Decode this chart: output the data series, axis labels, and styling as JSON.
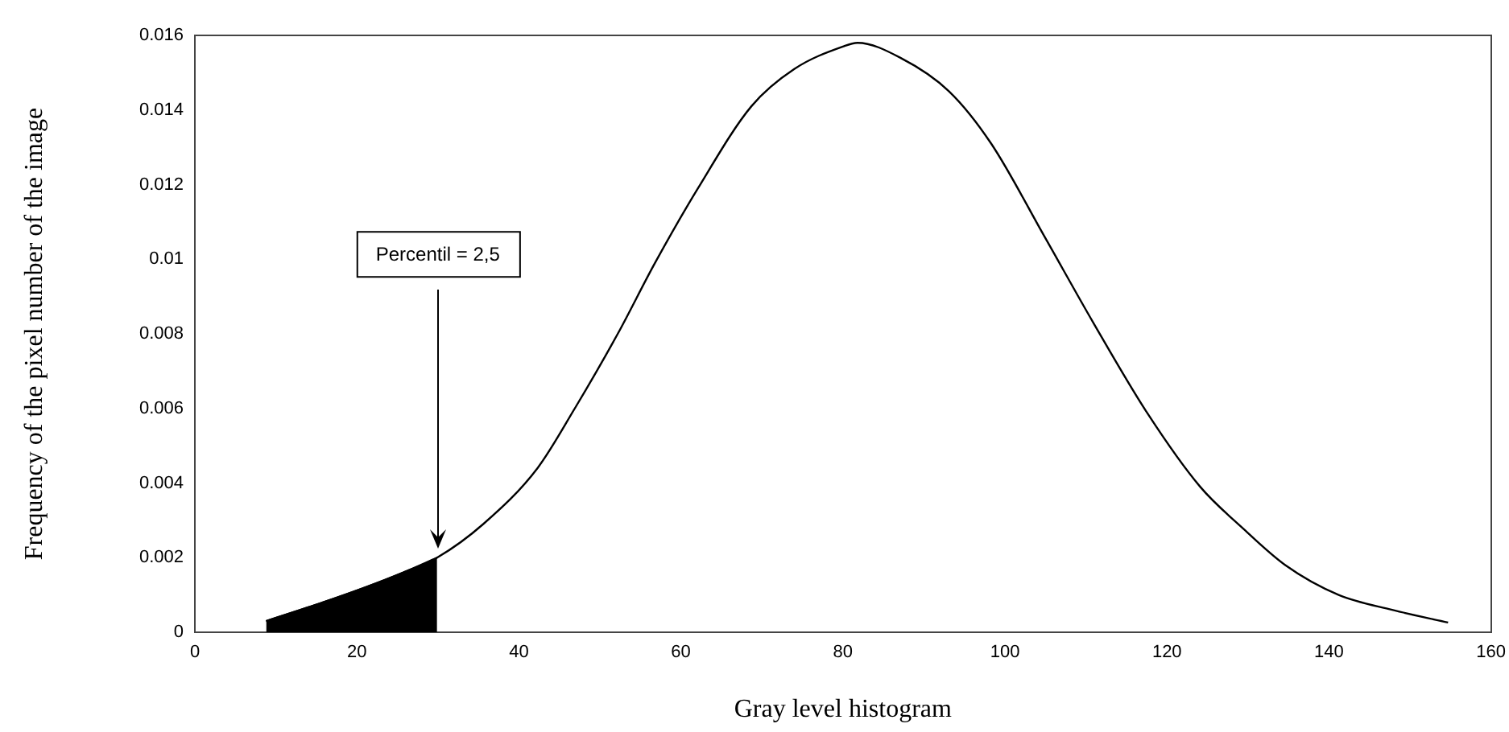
{
  "chart_data": {
    "type": "line",
    "xlabel": "Gray level histogram",
    "ylabel": "Frequency of the pixel number of the image",
    "xlim": [
      0,
      160
    ],
    "xticks": [
      0,
      20,
      40,
      60,
      80,
      100,
      120,
      140,
      160
    ],
    "ylim": [
      0,
      0.016
    ],
    "yticks": [
      0,
      0.002,
      0.004,
      0.006,
      0.008,
      0.01,
      0.012,
      0.014,
      0.016
    ],
    "grid": false,
    "legend": false,
    "marker": "none",
    "line_style": "solid",
    "annotations": [
      {
        "text": "Percentil = 2,5",
        "x": 30,
        "y": 0.002
      }
    ],
    "series": [
      {
        "type": "area",
        "color": "#000000",
        "x": [
          8.8,
          15.8,
          21,
          25.7,
          29.9
        ],
        "values": [
          0.0003,
          0.0008,
          0.0012,
          0.0016,
          0.002
        ]
      },
      {
        "type": "line",
        "color": "#000000",
        "x": [
          8.8,
          15.8,
          21,
          25.7,
          29.9,
          35.6,
          42.3,
          46.9,
          52.2,
          56.8,
          62.1,
          68.7,
          74,
          80,
          81.8,
          87.1,
          93.1,
          98.3,
          104.9,
          110.9,
          117.5,
          124.1,
          129.3,
          134.6,
          141.2,
          147.8,
          154.7
        ],
        "values": [
          0.0003,
          0.0008,
          0.0012,
          0.0016,
          0.002,
          0.0029,
          0.0044,
          0.006,
          0.008,
          0.0099,
          0.0119,
          0.0141,
          0.0151,
          0.0157,
          0.0158,
          0.0154,
          0.0145,
          0.0131,
          0.0106,
          0.0083,
          0.0059,
          0.0039,
          0.0028,
          0.0018,
          0.001,
          0.0006,
          0.00026
        ]
      }
    ]
  }
}
